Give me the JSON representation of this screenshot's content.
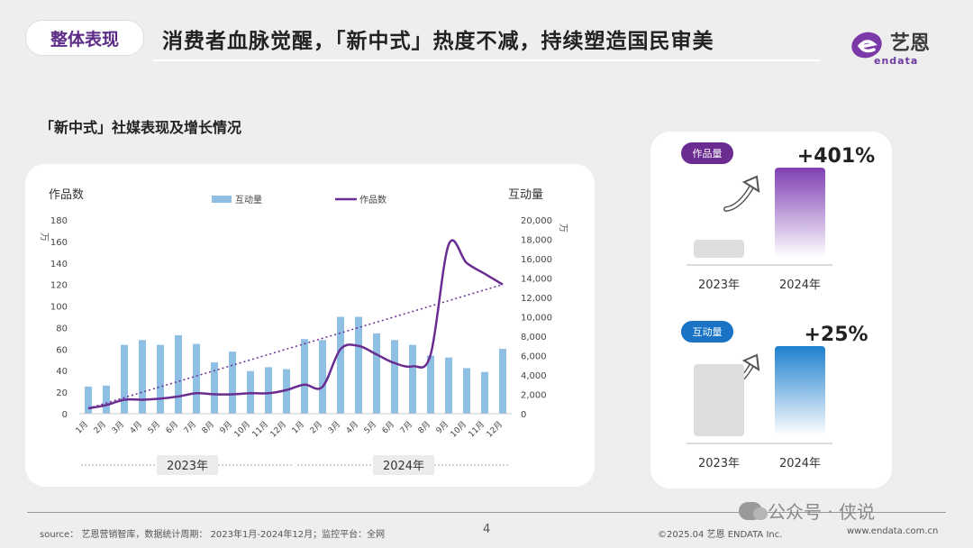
{
  "header": {
    "tag": "整体表现",
    "title": "消费者血脉觉醒，「新中式」热度不减，持续塑造国民审美",
    "logo_text": "艺恩",
    "logo_sub": "endata"
  },
  "section_title": "「新中式」社媒表现及增长情况",
  "chart_data": [
    {
      "type": "bar+line",
      "title": "",
      "categories": [
        "1月",
        "2月",
        "3月",
        "4月",
        "5月",
        "6月",
        "7月",
        "8月",
        "9月",
        "10月",
        "11月",
        "12月",
        "1月",
        "2月",
        "3月",
        "4月",
        "5月",
        "6月",
        "7月",
        "8月",
        "9月",
        "10月",
        "11月",
        "12月"
      ],
      "year_groups": [
        {
          "label": "2023年",
          "from": 0,
          "to": 11
        },
        {
          "label": "2024年",
          "from": 12,
          "to": 23
        }
      ],
      "series": [
        {
          "name": "互动量",
          "kind": "bar",
          "axis": "right",
          "color": "#8fbfe3",
          "values": [
            2800,
            2900,
            7100,
            7600,
            7100,
            8100,
            7200,
            5300,
            6400,
            4400,
            4800,
            4600,
            7700,
            7600,
            10000,
            10000,
            8300,
            7600,
            7100,
            6000,
            5800,
            4700,
            4300,
            6700
          ]
        },
        {
          "name": "作品数",
          "kind": "line",
          "axis": "left",
          "color": "#6a2c91",
          "values": [
            5,
            8,
            13,
            13,
            14,
            16,
            19,
            18,
            18,
            19,
            19,
            22,
            27,
            25,
            60,
            63,
            55,
            47,
            44,
            55,
            157,
            140,
            130,
            120
          ]
        }
      ],
      "trendline": {
        "from": [
          0,
          5
        ],
        "to": [
          23,
          120
        ],
        "axis": "left"
      },
      "left_axis": {
        "label": "作品数",
        "unit": "万",
        "min": 0,
        "max": 180,
        "ticks": [
          0,
          20,
          40,
          60,
          80,
          100,
          120,
          140,
          160,
          180
        ]
      },
      "right_axis": {
        "label": "互动量",
        "unit": "万",
        "min": 0,
        "max": 20000,
        "ticks": [
          "0",
          "2,000",
          "4,000",
          "6,000",
          "8,000",
          "10,000",
          "12,000",
          "14,000",
          "16,000",
          "18,000",
          "20,000"
        ]
      },
      "legend": {
        "placement": "top"
      }
    },
    {
      "type": "bar",
      "badge": "作品量",
      "badge_color": "#6a2c91",
      "growth": "+401%",
      "categories": [
        "2023年",
        "2024年"
      ],
      "values": [
        1,
        5.01
      ],
      "colors": [
        "#dddddd",
        "#7e3fb3"
      ]
    },
    {
      "type": "bar",
      "badge": "互动量",
      "badge_color": "#1a73c5",
      "growth": "+25%",
      "categories": [
        "2023年",
        "2024年"
      ],
      "values": [
        1,
        1.25
      ],
      "colors": [
        "#dddddd",
        "#1f80cf"
      ]
    }
  ],
  "footer": {
    "source": "source： 艺恩营销智库，数据统计周期： 2023年1月-2024年12月；监控平台：全网",
    "page": "4",
    "copyright": "©2025.04  艺恩  ENDATA Inc.",
    "site": "www.endata.com.cn",
    "watermark": "公众号 · 侠说"
  }
}
